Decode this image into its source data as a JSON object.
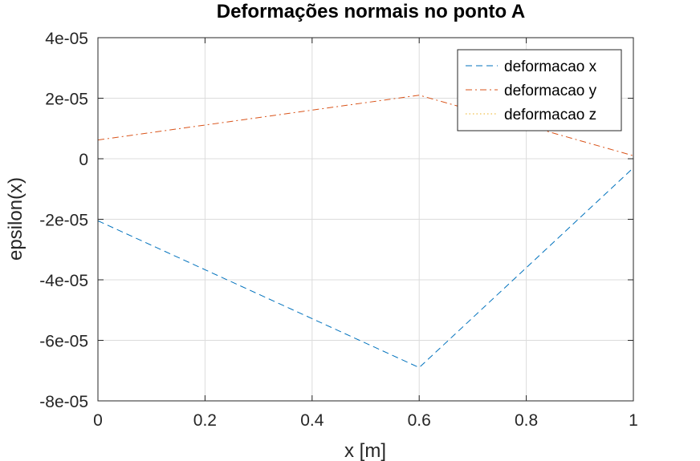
{
  "chart_data": {
    "type": "line",
    "title": "Deformações normais no ponto A",
    "xlabel": "x [m]",
    "ylabel": "epsilon(x)",
    "xlim": [
      0,
      1
    ],
    "ylim": [
      -8e-05,
      4e-05
    ],
    "x_ticks": [
      0,
      0.2,
      0.4,
      0.6,
      0.8,
      1
    ],
    "x_tick_labels": [
      "0",
      "0.2",
      "0.4",
      "0.6",
      "0.8",
      "1"
    ],
    "y_ticks": [
      4e-05,
      2e-05,
      0,
      -2e-05,
      -4e-05,
      -6e-05,
      -8e-05
    ],
    "y_tick_labels": [
      "4e-05",
      "2e-05",
      "0",
      "-2e-05",
      "-4e-05",
      "-6e-05",
      "-8e-05"
    ],
    "grid": true,
    "legend_position": "top-right",
    "series": [
      {
        "name": "deformacao x",
        "color": "#0072bd",
        "dash": "dashed",
        "x": [
          0,
          0.6,
          1
        ],
        "y": [
          -2.05e-05,
          -6.9e-05,
          -3e-06
        ]
      },
      {
        "name": "deformacao y",
        "color": "#d95319",
        "dash": "dash-dot",
        "x": [
          0,
          0.6,
          1
        ],
        "y": [
          6.2e-06,
          2.1e-05,
          1e-06
        ]
      },
      {
        "name": "deformacao z",
        "color": "#edb120",
        "dash": "dotted",
        "x": [],
        "y": []
      }
    ]
  }
}
